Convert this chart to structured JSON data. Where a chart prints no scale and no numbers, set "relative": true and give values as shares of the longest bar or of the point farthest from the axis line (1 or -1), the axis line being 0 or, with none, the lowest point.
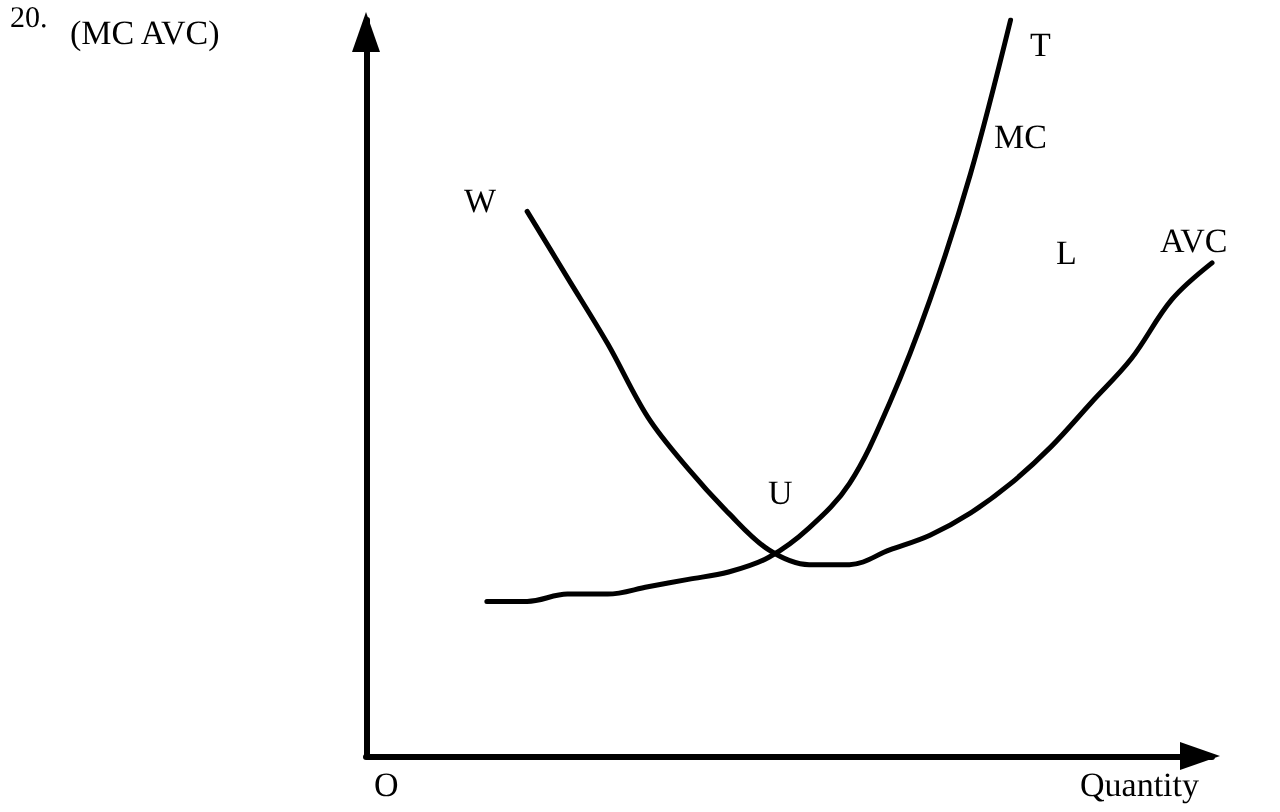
{
  "chart_data": {
    "type": "line",
    "relative": true,
    "ylabel": "(MC AVC)",
    "xlabel": "Quantity",
    "annotations": [
      "20.",
      "T",
      "W",
      "U",
      "L",
      "O"
    ],
    "categories": [
      null,
      null,
      null,
      null,
      null,
      null,
      null,
      null,
      null,
      null,
      null,
      null,
      null,
      null,
      null,
      null,
      null,
      null,
      null,
      null,
      null,
      null
    ],
    "series": [
      {
        "name": "MC",
        "color": "#000000",
        "values": [
          null,
          null,
          null,
          0.21,
          0.21,
          0.22,
          0.22,
          0.23,
          0.24,
          0.25,
          0.27,
          0.31,
          0.37,
          0.48,
          0.62,
          0.79,
          1,
          null,
          null,
          null,
          null,
          null
        ]
      },
      {
        "name": "AVC",
        "color": "#000000",
        "values": [
          null,
          null,
          null,
          null,
          0.74,
          0.65,
          0.56,
          0.46,
          0.39,
          0.33,
          0.28,
          0.26,
          0.26,
          0.28,
          0.3,
          0.33,
          0.37,
          0.42,
          0.48,
          0.54,
          0.62,
          0.67
        ]
      }
    ],
    "grid": false,
    "marker": "none",
    "line_style": "solid"
  }
}
